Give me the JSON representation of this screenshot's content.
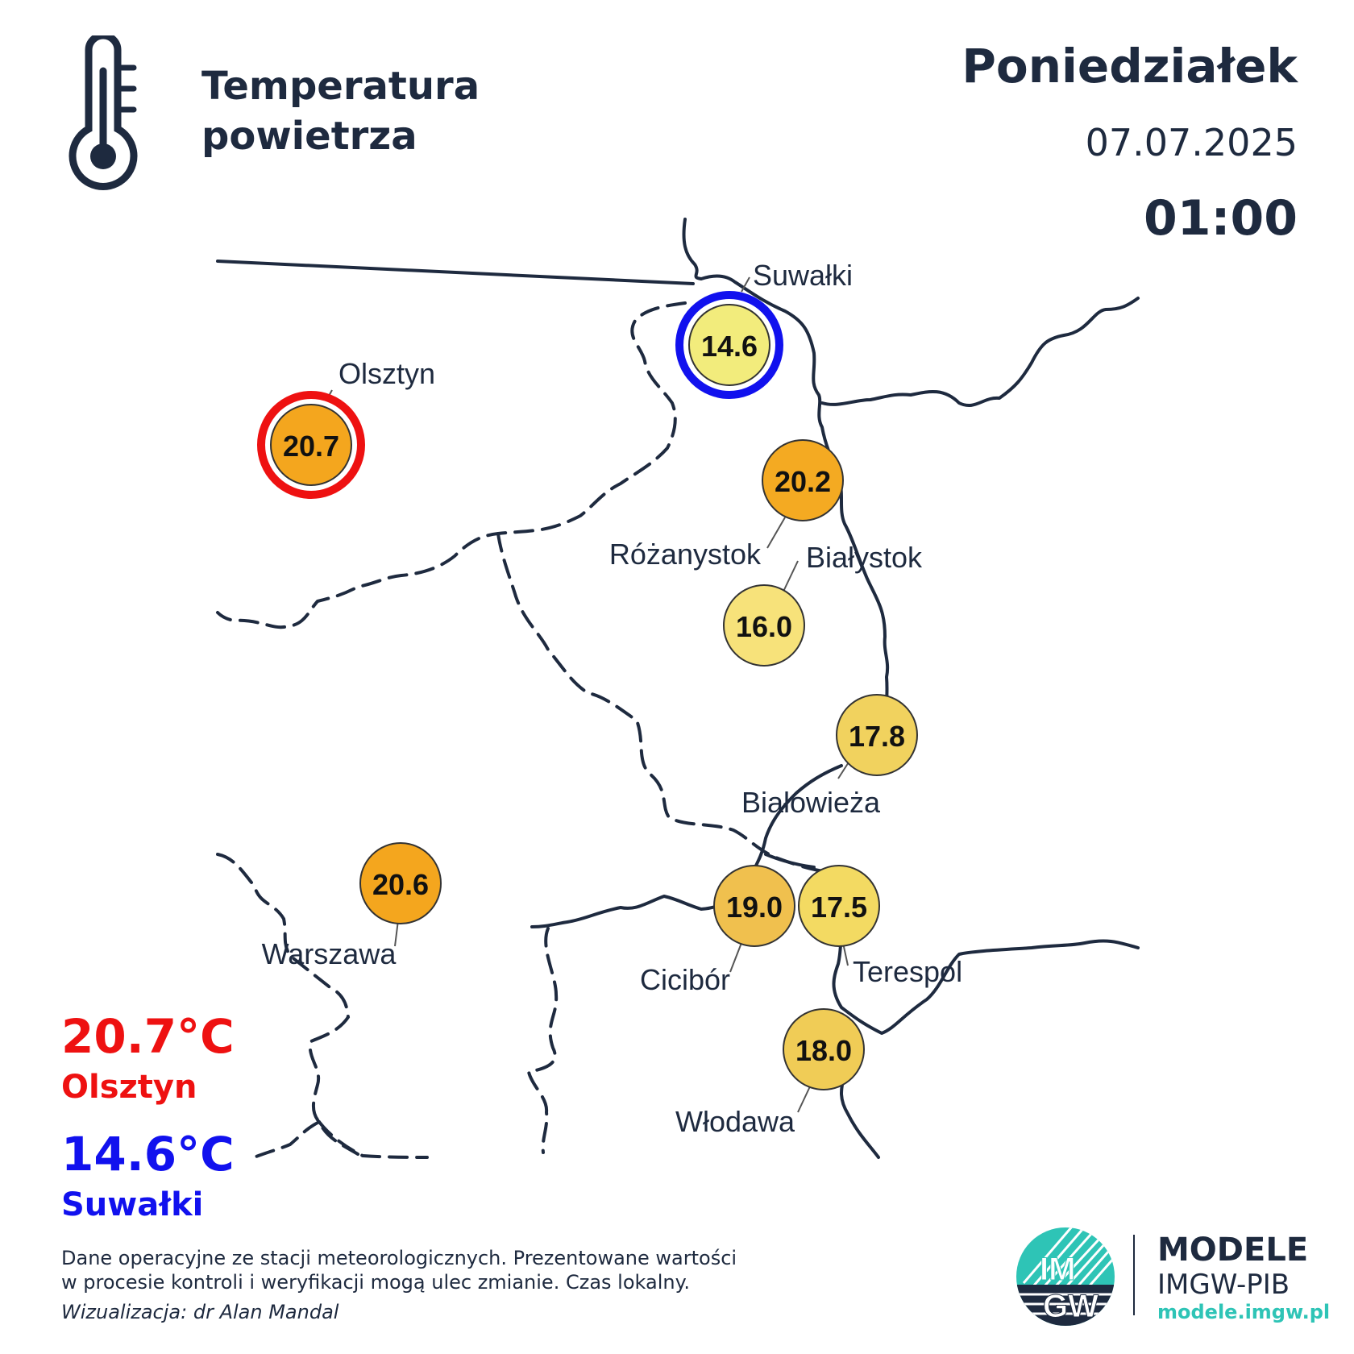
{
  "header": {
    "title_line1": "Temperatura",
    "title_line2": "powietrza",
    "day": "Poniedziałek",
    "date": "07.07.2025",
    "time": "01:00"
  },
  "icons": {
    "thermometer": "thermometer-icon",
    "logo": "imgw-logo"
  },
  "stations": [
    {
      "name": "Suwałki",
      "value": "14.6",
      "fill": "#f2ec7c",
      "ring": "min"
    },
    {
      "name": "Olsztyn",
      "value": "20.7",
      "fill": "#f4a61e",
      "ring": "max"
    },
    {
      "name": "Różanystok",
      "value": "20.2",
      "fill": "#f4aa22",
      "ring": "none"
    },
    {
      "name": "Białystok",
      "value": "16.0",
      "fill": "#f7e27a",
      "ring": "none"
    },
    {
      "name": "Białowieża",
      "value": "17.8",
      "fill": "#f1d25e",
      "ring": "none"
    },
    {
      "name": "Warszawa",
      "value": "20.6",
      "fill": "#f4a61e",
      "ring": "none"
    },
    {
      "name": "Cicibór",
      "value": "19.0",
      "fill": "#f0c04e",
      "ring": "none"
    },
    {
      "name": "Terespol",
      "value": "17.5",
      "fill": "#f3da62",
      "ring": "none"
    },
    {
      "name": "Włodawa",
      "value": "18.0",
      "fill": "#f0cc56",
      "ring": "none"
    }
  ],
  "extremes": {
    "max_value": "20.7°C",
    "max_station": "Olsztyn",
    "max_color": "#ee1111",
    "min_value": "14.6°C",
    "min_station": "Suwałki",
    "min_color": "#1111ee"
  },
  "footer": {
    "note_line1": "Dane operacyjne ze stacji meteorologicznych. Prezentowane wartości",
    "note_line2": "w procesie kontroli i weryfikacji mogą ulec zmianie. Czas lokalny.",
    "credit": "Wizualizacja: dr Alan Mandal",
    "logo_text_top": "IM",
    "logo_text_bottom": "GW",
    "brand_title": "MODELE",
    "brand_sub": "IMGW-PIB",
    "brand_url": "modele.imgw.pl"
  },
  "colors": {
    "text": "#1e2a3f",
    "border_lines": "#1e2a3f",
    "logo_teal": "#2ec4b6"
  }
}
